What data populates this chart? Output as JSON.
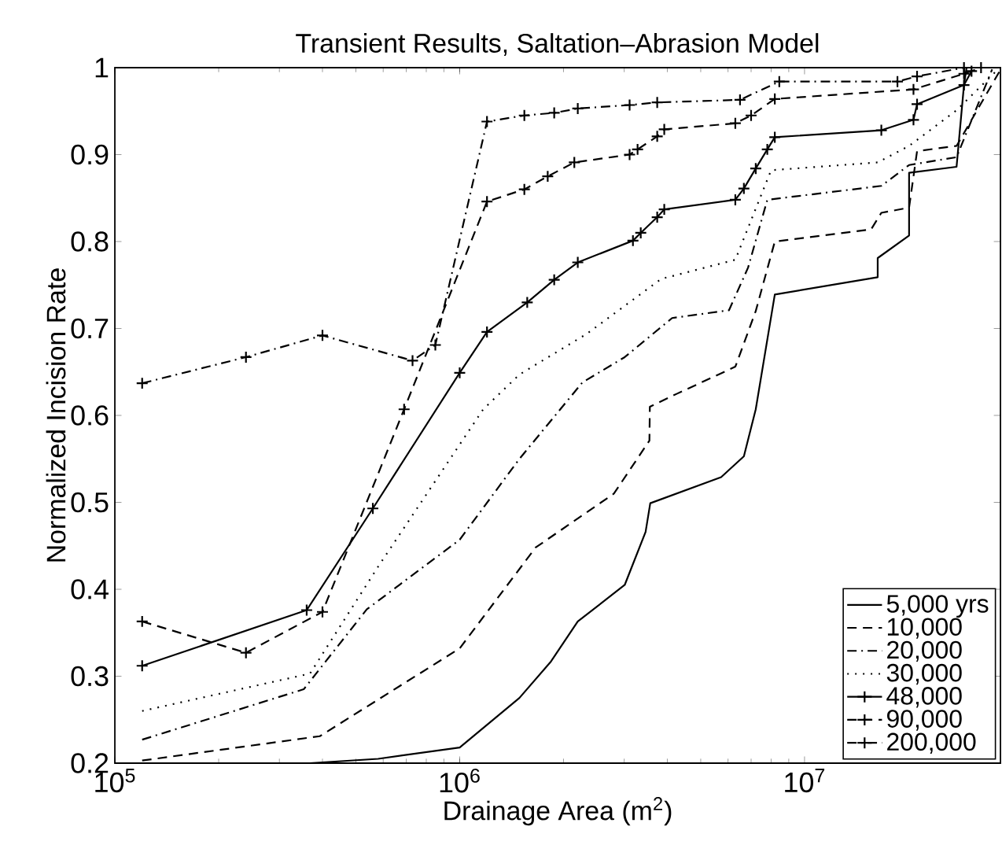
{
  "chart_data": {
    "type": "line",
    "title": "Transient Results, Saltation–Abrasion Model",
    "xlabel": "Drainage Area (m$^{2}$)",
    "ylabel": "Normalized Incision Rate",
    "log": "x",
    "grid": false,
    "legend": "bottom right",
    "xlim": [
      100000,
      37000000
    ],
    "ylim": [
      0.2,
      1
    ],
    "xticks": [
      {
        "value": 100000,
        "label": "10$^{5}$"
      },
      {
        "value": 1000000,
        "label": "10$^{6}$"
      },
      {
        "value": 10000000,
        "label": "10$^{7}$"
      }
    ],
    "yticks": [
      0.2,
      0.3,
      0.4,
      0.5,
      0.6,
      0.7,
      0.8,
      0.9,
      1
    ],
    "series": [
      {
        "name": "5,000 yrs",
        "color": "#000000",
        "line_style": "solid",
        "marker": "none",
        "x": [
          120000,
          368000,
          580000,
          1000000,
          1490000,
          1840000,
          2200000,
          3010000,
          3460000,
          3570000,
          5730000,
          6670000,
          7220000,
          8200000,
          16300000,
          16300000,
          20100000,
          20100000,
          27600000,
          29000000,
          29500000
        ],
        "values": [
          0.2,
          0.2,
          0.205,
          0.218,
          0.275,
          0.317,
          0.363,
          0.405,
          0.466,
          0.499,
          0.529,
          0.553,
          0.607,
          0.739,
          0.759,
          0.781,
          0.807,
          0.879,
          0.886,
          0.98,
          1.0
        ]
      },
      {
        "name": "10,000",
        "color": "#000000",
        "line_style": "dashed",
        "marker": "none",
        "x": [
          120000,
          393000,
          1000000,
          1660000,
          2800000,
          3550000,
          3560000,
          4270000,
          6300000,
          7220000,
          8200000,
          15600000,
          16700000,
          20100000,
          21200000,
          27600000,
          36800000
        ],
        "values": [
          0.203,
          0.231,
          0.332,
          0.448,
          0.51,
          0.571,
          0.61,
          0.625,
          0.656,
          0.72,
          0.8,
          0.814,
          0.833,
          0.839,
          0.904,
          0.91,
          0.996
        ]
      },
      {
        "name": "20,000",
        "color": "#000000",
        "line_style": "dashdot",
        "marker": "none",
        "x": [
          120000,
          353000,
          538000,
          1000000,
          1490000,
          2270000,
          3010000,
          4130000,
          6040000,
          6860000,
          7800000,
          16700000,
          20100000,
          27600000,
          35000000
        ],
        "values": [
          0.227,
          0.285,
          0.377,
          0.457,
          0.55,
          0.638,
          0.667,
          0.712,
          0.721,
          0.77,
          0.848,
          0.864,
          0.888,
          0.897,
          0.998
        ]
      },
      {
        "name": "30,000",
        "color": "#000000",
        "line_style": "dotted",
        "marker": "none",
        "x": [
          120000,
          368000,
          580000,
          1170000,
          1490000,
          2340000,
          3840000,
          6300000,
          8000000,
          16300000,
          20100000,
          27600000,
          36800000
        ],
        "values": [
          0.26,
          0.303,
          0.426,
          0.607,
          0.647,
          0.694,
          0.757,
          0.779,
          0.882,
          0.891,
          0.91,
          0.951,
          1.0
        ]
      },
      {
        "name": "48,000",
        "color": "#000000",
        "line_style": "solid",
        "marker": "cross",
        "x": [
          120000,
          360000,
          560000,
          1000000,
          1200000,
          1570000,
          1880000,
          2200000,
          3180000,
          3350000,
          3740000,
          3920000,
          6300000,
          6670000,
          7220000,
          7800000,
          8200000,
          16700000,
          20700000,
          21200000,
          29000000,
          30500000
        ],
        "values": [
          0.312,
          0.376,
          0.493,
          0.649,
          0.696,
          0.73,
          0.756,
          0.776,
          0.801,
          0.81,
          0.828,
          0.837,
          0.848,
          0.861,
          0.884,
          0.906,
          0.92,
          0.928,
          0.94,
          0.958,
          0.98,
          0.996
        ]
      },
      {
        "name": "90,000",
        "color": "#000000",
        "line_style": "dashed",
        "marker": "cross",
        "x": [
          120000,
          240000,
          400000,
          690000,
          1200000,
          1540000,
          1800000,
          2150000,
          3110000,
          3280000,
          3740000,
          3920000,
          6300000,
          7000000,
          8200000,
          20700000,
          29000000,
          32500000
        ],
        "values": [
          0.363,
          0.327,
          0.374,
          0.607,
          0.846,
          0.86,
          0.875,
          0.891,
          0.9,
          0.906,
          0.921,
          0.929,
          0.936,
          0.945,
          0.964,
          0.975,
          0.993,
          1.0
        ]
      },
      {
        "name": "200,000",
        "color": "#000000",
        "line_style": "dashdot",
        "marker": "cross",
        "x": [
          120000,
          240000,
          400000,
          730000,
          850000,
          1200000,
          1540000,
          1880000,
          2200000,
          3110000,
          3740000,
          6500000,
          8450000,
          18600000,
          21200000,
          29000000
        ],
        "values": [
          0.637,
          0.667,
          0.692,
          0.663,
          0.681,
          0.938,
          0.945,
          0.948,
          0.953,
          0.957,
          0.96,
          0.963,
          0.984,
          0.984,
          0.99,
          1.0
        ]
      }
    ]
  }
}
